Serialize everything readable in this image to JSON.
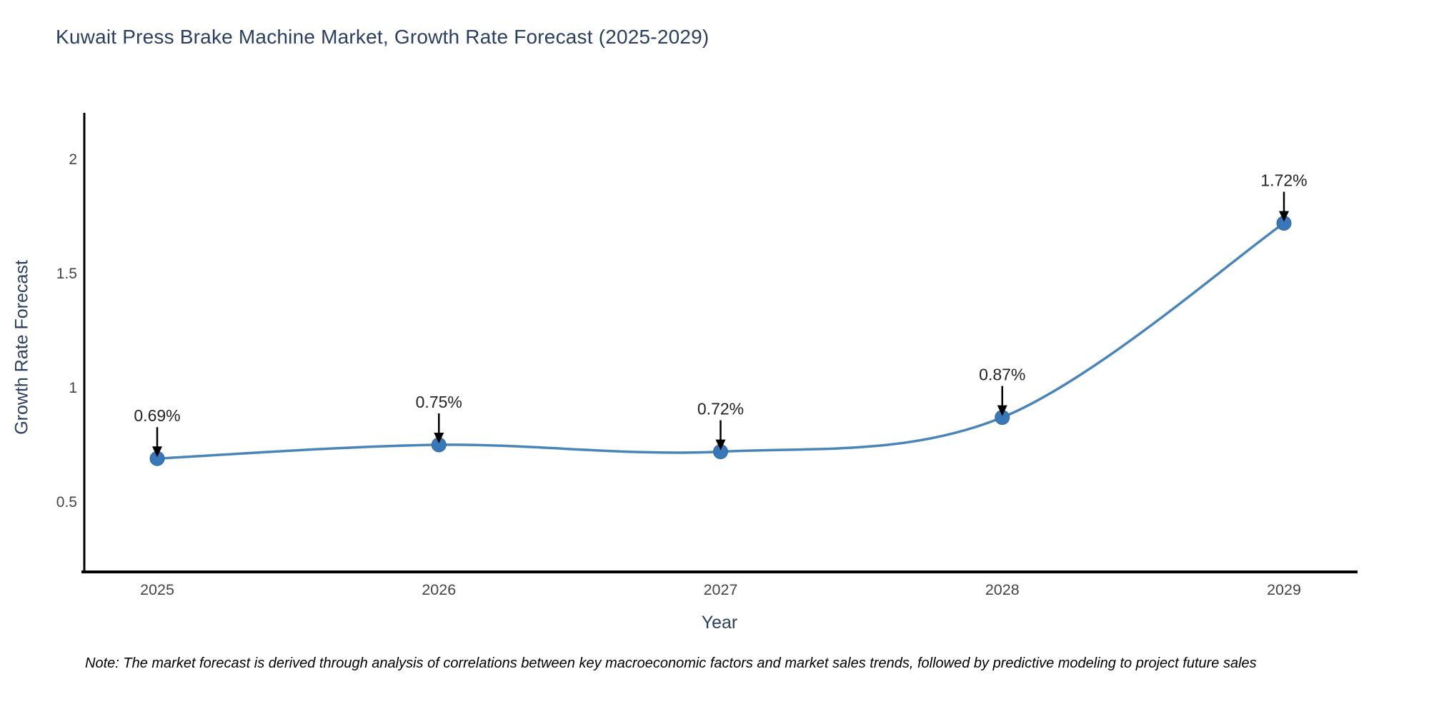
{
  "note": "Note: The market forecast is derived through analysis of correlations between key macroeconomic factors and market sales trends, followed by predictive modeling to project future sales",
  "chart_data": {
    "type": "line",
    "title": "Kuwait Press Brake Machine Market, Growth Rate Forecast (2025-2029)",
    "xlabel": "Year",
    "ylabel": "Growth Rate Forecast",
    "categories": [
      "2025",
      "2026",
      "2027",
      "2028",
      "2029"
    ],
    "series": [
      {
        "name": "Growth Rate Forecast",
        "values": [
          0.69,
          0.75,
          0.72,
          0.87,
          1.72
        ]
      }
    ],
    "point_labels": [
      "0.69%",
      "0.75%",
      "0.72%",
      "0.87%",
      "1.72%"
    ],
    "ytick_labels": [
      "0.5",
      "1",
      "1.5",
      "2"
    ],
    "ytick_values": [
      0.5,
      1,
      1.5,
      2
    ],
    "ylim": [
      0.2,
      2.2
    ],
    "line_shape": "spline",
    "grid": false,
    "legend_position": "none",
    "annotation_arrow_direction": "down",
    "colors": {
      "line": "#4a85ba",
      "marker": "#3878b8",
      "marker_edge": "#32699f",
      "axis": "#000000",
      "title_text": "#2a3f5f",
      "axis_label_text": "#2a3f5f",
      "tick_text": "#444444",
      "annotation_text": "#222222",
      "arrow": "#000000",
      "note_text": "#000000",
      "background": "#ffffff"
    }
  }
}
